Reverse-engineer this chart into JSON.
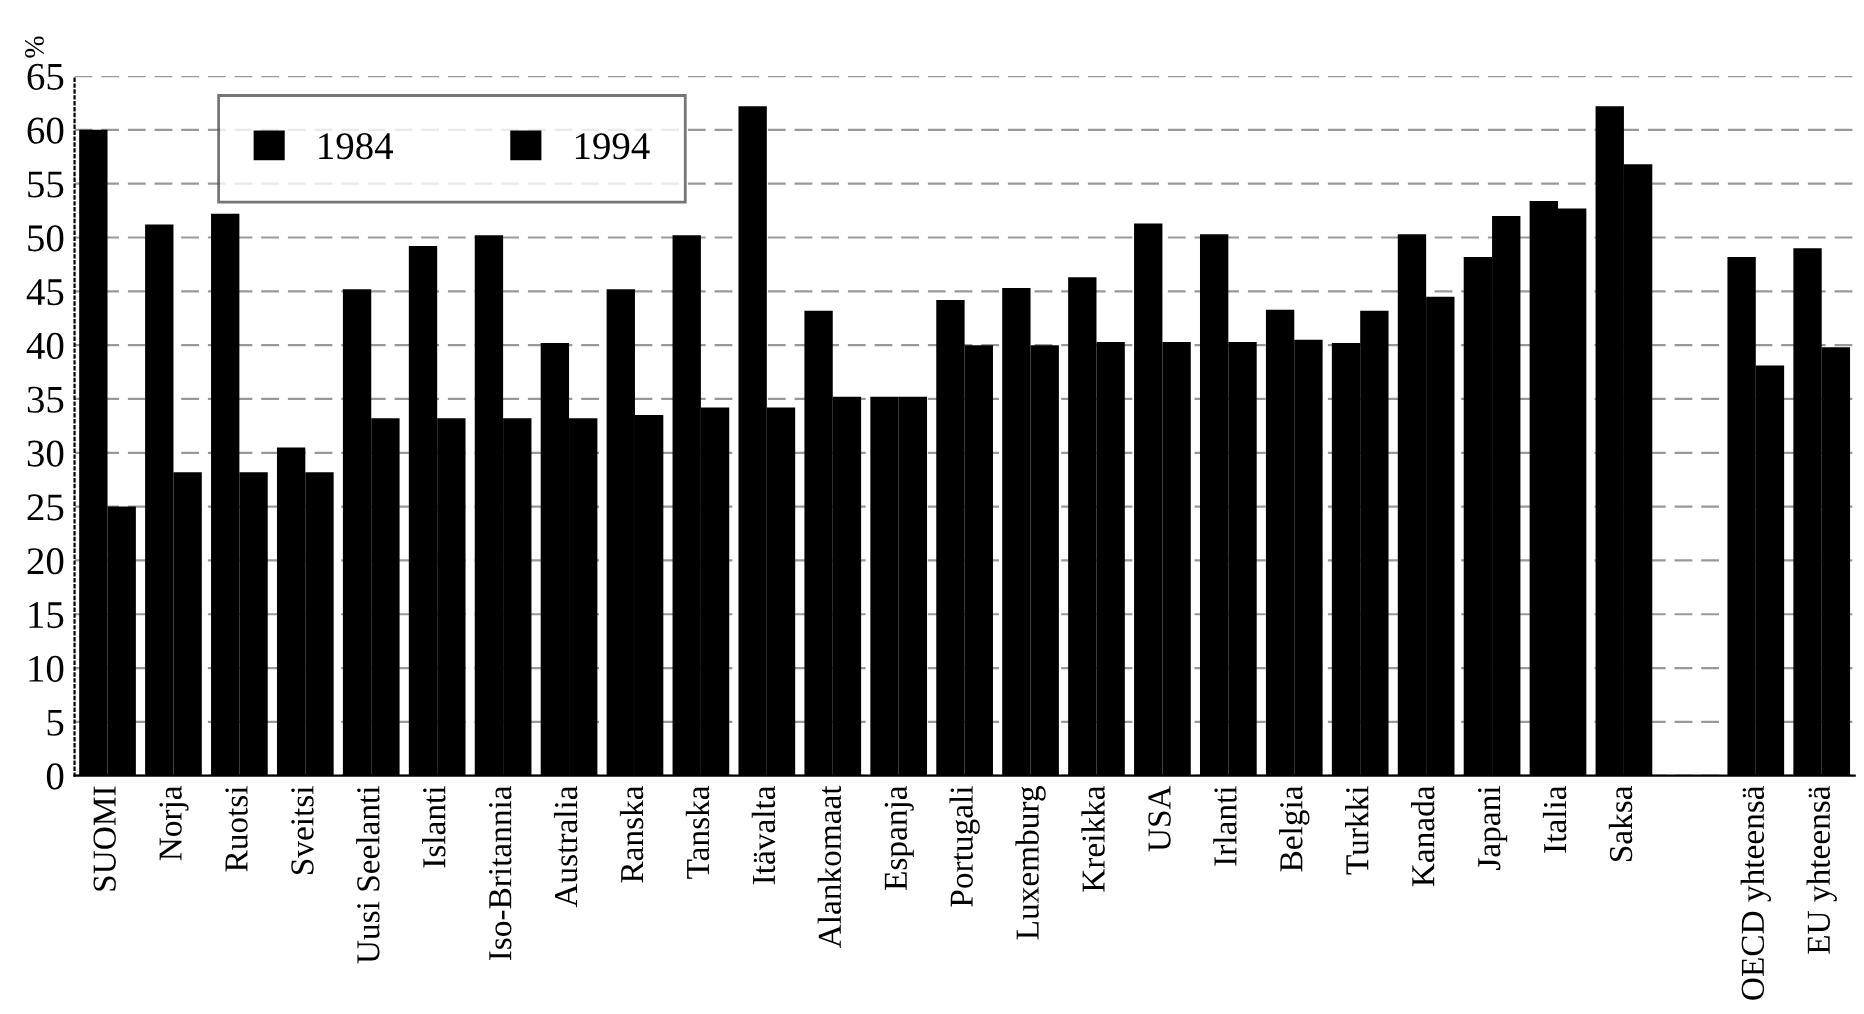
{
  "chart_data": {
    "type": "bar",
    "ylabel": "%",
    "categories": [
      "SUOMI",
      "Norja",
      "Ruotsi",
      "Sveitsi",
      "Uusi Seelanti",
      "Islanti",
      "Iso-Britannia",
      "Australia",
      "Ranska",
      "Tanska",
      "Itävalta",
      "Alankomaat",
      "Espanja",
      "Portugali",
      "Luxemburg",
      "Kreikka",
      "USA",
      "Irlanti",
      "Belgia",
      "Turkki",
      "Kanada",
      "Japani",
      "Italia",
      "Saksa",
      null,
      "OECD yhteensä",
      "EU yhteensä"
    ],
    "series": [
      {
        "name": "1984",
        "color": "#000000",
        "values": [
          60,
          51.2,
          52.2,
          30.5,
          45.2,
          49.2,
          50.2,
          40.2,
          45.2,
          50.2,
          62.2,
          43.2,
          35.2,
          44.2,
          45.3,
          46.3,
          51.3,
          50.3,
          43.3,
          40.2,
          50.3,
          48.2,
          53.4,
          62.2,
          null,
          48.2,
          49
        ]
      },
      {
        "name": "1994",
        "color": "#000000",
        "values": [
          25,
          28.2,
          28.2,
          28.2,
          33.2,
          33.2,
          33.2,
          33.2,
          33.5,
          34.2,
          34.2,
          35.2,
          35.2,
          40,
          40,
          40.3,
          40.3,
          40.3,
          40.5,
          43.2,
          44.5,
          52,
          52.7,
          56.8,
          null,
          38.1,
          39.8
        ]
      }
    ],
    "ylim": [
      0,
      65
    ],
    "yticks": [
      0,
      5,
      10,
      15,
      20,
      25,
      30,
      35,
      40,
      45,
      50,
      55,
      60,
      65
    ],
    "grid": "y",
    "legend": "top left"
  }
}
